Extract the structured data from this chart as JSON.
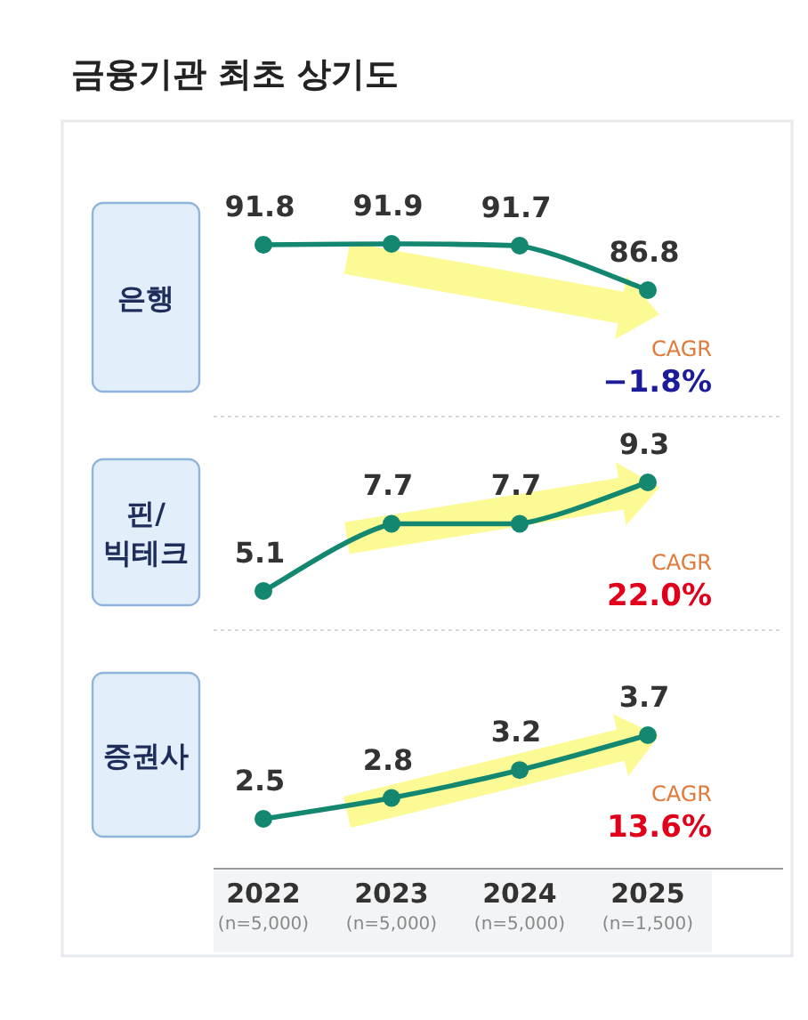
{
  "chart_data": [
    {
      "type": "line",
      "title": "금융기관 최초 상기도",
      "ylabel": "은행",
      "categories": [
        null,
        null,
        null,
        null
      ],
      "values": [
        91.8,
        91.9,
        91.7,
        86.8
      ],
      "color": "#13876f",
      "marker": "circle",
      "data_labels": true,
      "tick_labels": false,
      "annotations": [
        "CAGR",
        "−1.8%"
      ]
    },
    {
      "type": "line",
      "ylabel": "핀/빅테크",
      "categories": [
        null,
        null,
        null,
        null
      ],
      "values": [
        5.1,
        7.7,
        7.7,
        9.3
      ],
      "color": "#13876f",
      "marker": "circle",
      "data_labels": true,
      "tick_labels": false,
      "annotations": [
        "CAGR",
        "22.0%"
      ]
    },
    {
      "type": "line",
      "ylabel": "증권사",
      "categories": [
        "2022 (n=5,000)",
        "2023 (n=5,000)",
        "2024 (n=5,000)",
        "2025 (n=1,500)"
      ],
      "values": [
        2.5,
        2.8,
        3.2,
        3.7
      ],
      "color": "#13876f",
      "marker": "circle",
      "data_labels": true,
      "tick_labels": "x",
      "annotations": [
        "CAGR",
        "13.6%"
      ]
    }
  ]
}
